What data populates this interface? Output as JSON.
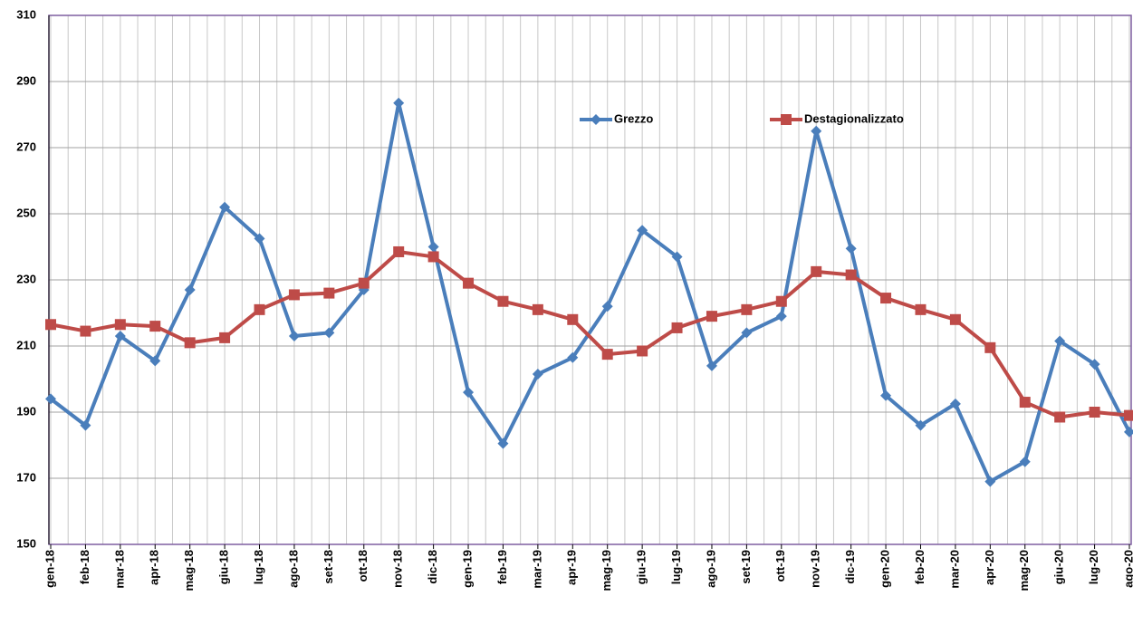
{
  "chart_data": {
    "type": "line",
    "categories": [
      "gen-18",
      "feb-18",
      "mar-18",
      "apr-18",
      "mag-18",
      "giu-18",
      "lug-18",
      "ago-18",
      "set-18",
      "ott-18",
      "nov-18",
      "dic-18",
      "gen-19",
      "feb-19",
      "mar-19",
      "apr-19",
      "mag-19",
      "giu-19",
      "lug-19",
      "ago-19",
      "set-19",
      "ott-19",
      "nov-19",
      "dic-19",
      "gen-20",
      "feb-20",
      "mar-20",
      "apr-20",
      "mag-20",
      "giu-20",
      "lug-20",
      "ago-20"
    ],
    "series": [
      {
        "name": "Grezzo",
        "color": "#4a7ebb",
        "values": [
          194,
          186,
          213,
          205.5,
          227,
          252,
          242.5,
          213,
          214,
          227,
          283.5,
          240,
          196,
          180.5,
          201.5,
          206.5,
          222,
          245,
          237,
          204,
          214,
          219,
          275,
          239.5,
          195,
          186,
          192.5,
          169,
          175,
          211.5,
          204.5,
          184
        ]
      },
      {
        "name": "Destagionalizzato",
        "color": "#be4b48",
        "values": [
          216.5,
          214.5,
          216.5,
          216,
          211,
          212.5,
          221,
          225.5,
          226,
          229,
          238.5,
          237,
          229,
          223.5,
          221,
          218,
          207.5,
          208.5,
          215.5,
          219,
          221,
          223.5,
          232.5,
          231.5,
          224.5,
          221,
          218,
          209.5,
          193,
          188.5,
          190,
          189
        ]
      }
    ],
    "ylim": [
      150,
      310
    ],
    "yticks": [
      150,
      170,
      190,
      210,
      230,
      250,
      270,
      290,
      310
    ],
    "grid": true,
    "legend": "top"
  }
}
